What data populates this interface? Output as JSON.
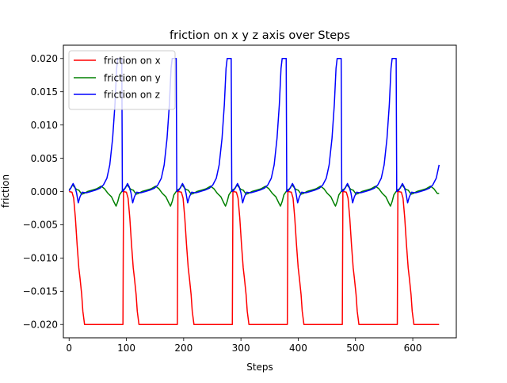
{
  "chart_data": {
    "type": "line",
    "title": "friction on x y z axis over Steps",
    "xlabel": "Steps",
    "ylabel": "friction",
    "xlim": [
      -10,
      676
    ],
    "ylim": [
      -0.022,
      0.022
    ],
    "xticks": [
      0,
      100,
      200,
      300,
      400,
      500,
      600
    ],
    "yticks": [
      -0.02,
      -0.015,
      -0.01,
      -0.005,
      0.0,
      0.005,
      0.01,
      0.015,
      0.02
    ],
    "xtick_labels": [
      "0",
      "100",
      "200",
      "300",
      "400",
      "500",
      "600"
    ],
    "ytick_labels": [
      "−0.020",
      "−0.015",
      "−0.010",
      "−0.005",
      "0.000",
      "0.005",
      "0.010",
      "0.015",
      "0.020"
    ],
    "grid": false,
    "legend_position": "top-left",
    "cycle_starts": [
      0,
      95,
      191,
      287,
      383,
      479,
      575
    ],
    "end_step": 646,
    "series": [
      {
        "name": "friction on x",
        "color": "#ff0000",
        "profile": [
          [
            0,
            0.0
          ],
          [
            5,
            -0.0001
          ],
          [
            8,
            -0.001
          ],
          [
            11,
            -0.004
          ],
          [
            14,
            -0.008
          ],
          [
            17,
            -0.0115
          ],
          [
            19,
            -0.013
          ],
          [
            22,
            -0.0155
          ],
          [
            24,
            -0.018
          ],
          [
            27,
            -0.02
          ],
          [
            94,
            -0.02
          ],
          [
            95,
            0.0
          ]
        ]
      },
      {
        "name": "friction on y",
        "color": "#008000",
        "profile": [
          [
            0,
            0.0003
          ],
          [
            3,
            0.0005
          ],
          [
            6,
            0.001
          ],
          [
            9,
            0.0007
          ],
          [
            13,
            0.0003
          ],
          [
            17,
            0.0002
          ],
          [
            22,
            -0.0004
          ],
          [
            26,
            -0.0003
          ],
          [
            32,
            0.0
          ],
          [
            40,
            0.0002
          ],
          [
            48,
            0.0004
          ],
          [
            56,
            0.0008
          ],
          [
            62,
            0.0004
          ],
          [
            68,
            -0.0003
          ],
          [
            74,
            -0.0008
          ],
          [
            79,
            -0.0017
          ],
          [
            82,
            -0.0022
          ],
          [
            85,
            -0.0015
          ],
          [
            88,
            -0.0005
          ],
          [
            92,
            0.0
          ],
          [
            95,
            0.0003
          ]
        ]
      },
      {
        "name": "friction on z",
        "color": "#0000ff",
        "profile": [
          [
            0,
            0.0001
          ],
          [
            4,
            0.0007
          ],
          [
            7,
            0.0012
          ],
          [
            10,
            0.0007
          ],
          [
            13,
            -0.0002
          ],
          [
            16,
            -0.0017
          ],
          [
            19,
            -0.0008
          ],
          [
            23,
            -0.0001
          ],
          [
            30,
            -0.0002
          ],
          [
            38,
            0.0
          ],
          [
            46,
            0.0002
          ],
          [
            54,
            0.0005
          ],
          [
            60,
            0.001
          ],
          [
            66,
            0.002
          ],
          [
            71,
            0.004
          ],
          [
            76,
            0.008
          ],
          [
            80,
            0.013
          ],
          [
            83,
            0.0185
          ],
          [
            85,
            0.02
          ],
          [
            92,
            0.02
          ],
          [
            93,
            0.0
          ],
          [
            95,
            0.0001
          ]
        ]
      }
    ]
  }
}
